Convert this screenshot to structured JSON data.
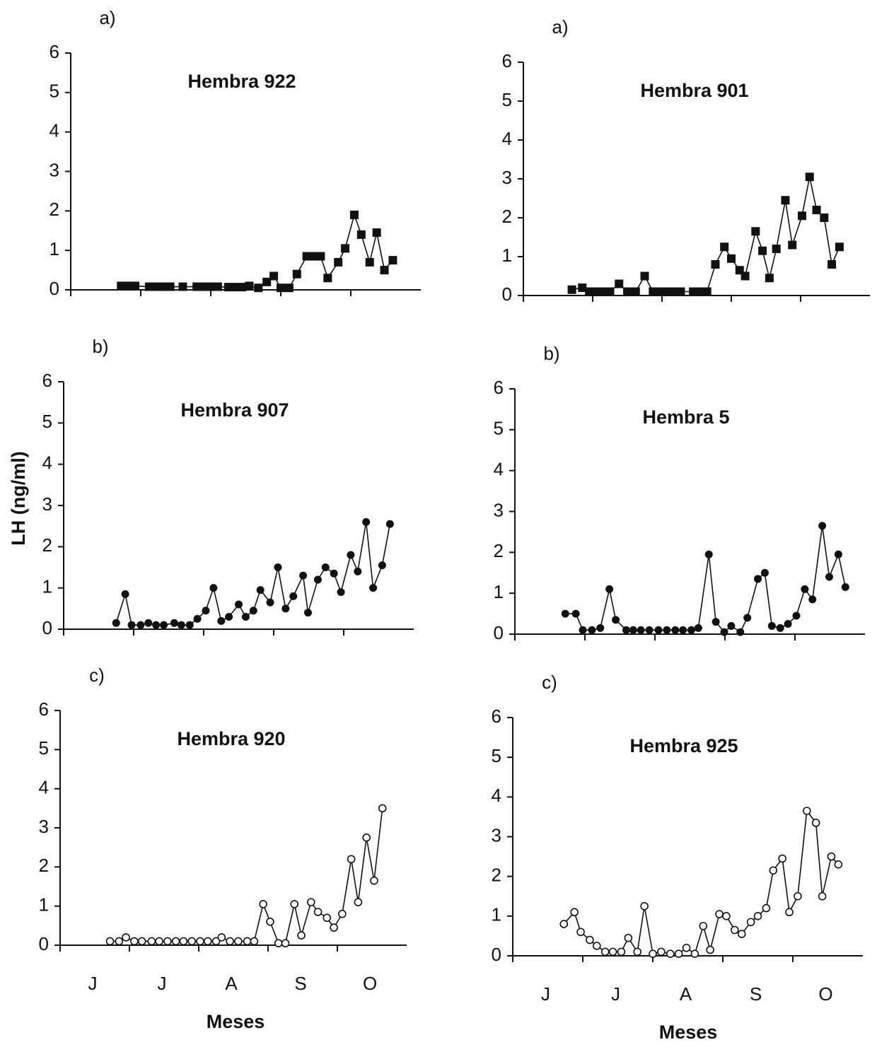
{
  "chart_data": [
    {
      "type": "line",
      "panel": "a)",
      "title": "Hembra 922",
      "marker": "square",
      "color": "#111111",
      "xlim": [
        0,
        5
      ],
      "xticks": [
        0,
        1,
        2,
        3,
        4
      ],
      "ylim": [
        0,
        6
      ],
      "yticks": [
        0,
        1,
        2,
        3,
        4,
        5,
        6
      ],
      "x": [
        0.72,
        0.82,
        0.92,
        1.12,
        1.22,
        1.32,
        1.42,
        1.6,
        1.8,
        1.9,
        2.0,
        2.1,
        2.25,
        2.35,
        2.45,
        2.55,
        2.68,
        2.8,
        2.9,
        3.0,
        3.12,
        3.23,
        3.37,
        3.47,
        3.57,
        3.67,
        3.82,
        3.92,
        4.05,
        4.15,
        4.27,
        4.37,
        4.48,
        4.6
      ],
      "values": [
        0.1,
        0.1,
        0.1,
        0.08,
        0.08,
        0.08,
        0.08,
        0.08,
        0.08,
        0.08,
        0.08,
        0.08,
        0.07,
        0.07,
        0.07,
        0.1,
        0.05,
        0.2,
        0.35,
        0.05,
        0.05,
        0.4,
        0.85,
        0.85,
        0.85,
        0.3,
        0.7,
        1.05,
        1.9,
        1.4,
        0.7,
        1.45,
        0.5,
        0.75
      ]
    },
    {
      "type": "line",
      "panel": "a)",
      "title": "Hembra 901",
      "marker": "square",
      "color": "#111111",
      "xlim": [
        0,
        5
      ],
      "xticks": [
        0,
        1,
        2,
        3,
        4
      ],
      "ylim": [
        0,
        6
      ],
      "yticks": [
        0,
        1,
        2,
        3,
        4,
        5,
        6
      ],
      "x": [
        0.7,
        0.85,
        0.95,
        1.05,
        1.15,
        1.25,
        1.38,
        1.5,
        1.62,
        1.75,
        1.87,
        1.97,
        2.07,
        2.17,
        2.27,
        2.45,
        2.55,
        2.65,
        2.77,
        2.9,
        3.0,
        3.12,
        3.2,
        3.35,
        3.45,
        3.55,
        3.65,
        3.78,
        3.88,
        4.02,
        4.13,
        4.23,
        4.34,
        4.45,
        4.56
      ],
      "values": [
        0.15,
        0.2,
        0.1,
        0.1,
        0.1,
        0.1,
        0.3,
        0.1,
        0.1,
        0.5,
        0.1,
        0.1,
        0.1,
        0.1,
        0.1,
        0.1,
        0.1,
        0.1,
        0.8,
        1.25,
        0.95,
        0.65,
        0.5,
        1.65,
        1.15,
        0.45,
        1.2,
        2.45,
        1.3,
        2.05,
        3.05,
        2.2,
        2.0,
        0.8,
        1.25
      ]
    },
    {
      "type": "line",
      "panel": "b)",
      "title": "Hembra 907",
      "marker": "circle",
      "color": "#111111",
      "ylabel": "LH (ng/ml)",
      "xlim": [
        0,
        5
      ],
      "xticks": [
        0,
        1,
        2,
        3,
        4
      ],
      "ylim": [
        0,
        6
      ],
      "yticks": [
        0,
        1,
        2,
        3,
        4,
        5,
        6
      ],
      "x": [
        0.75,
        0.88,
        0.97,
        1.1,
        1.21,
        1.32,
        1.43,
        1.58,
        1.68,
        1.8,
        1.91,
        2.03,
        2.14,
        2.25,
        2.36,
        2.5,
        2.6,
        2.71,
        2.81,
        2.95,
        3.06,
        3.17,
        3.28,
        3.42,
        3.49,
        3.63,
        3.74,
        3.86,
        3.96,
        4.1,
        4.2,
        4.32,
        4.42,
        4.55,
        4.66
      ],
      "values": [
        0.15,
        0.85,
        0.1,
        0.1,
        0.15,
        0.1,
        0.1,
        0.15,
        0.1,
        0.1,
        0.25,
        0.45,
        1.0,
        0.2,
        0.3,
        0.6,
        0.3,
        0.45,
        0.95,
        0.65,
        1.5,
        0.5,
        0.8,
        1.3,
        0.4,
        1.2,
        1.5,
        1.35,
        0.9,
        1.8,
        1.4,
        2.6,
        1.0,
        1.55,
        2.55
      ]
    },
    {
      "type": "line",
      "panel": "b)",
      "title": "Hembra 5",
      "marker": "circle",
      "color": "#111111",
      "xlim": [
        0,
        5
      ],
      "xticks": [
        0,
        1,
        2,
        3,
        4
      ],
      "ylim": [
        0,
        6
      ],
      "yticks": [
        0,
        1,
        2,
        3,
        4,
        5,
        6
      ],
      "x": [
        0.72,
        0.87,
        0.97,
        1.1,
        1.22,
        1.35,
        1.44,
        1.59,
        1.69,
        1.8,
        1.92,
        2.05,
        2.17,
        2.29,
        2.4,
        2.52,
        2.62,
        2.77,
        2.87,
        2.99,
        3.09,
        3.22,
        3.32,
        3.47,
        3.57,
        3.67,
        3.79,
        3.9,
        4.02,
        4.14,
        4.25,
        4.39,
        4.49,
        4.62,
        4.72
      ],
      "values": [
        0.5,
        0.5,
        0.1,
        0.1,
        0.15,
        1.1,
        0.35,
        0.1,
        0.1,
        0.1,
        0.1,
        0.1,
        0.1,
        0.1,
        0.1,
        0.1,
        0.15,
        1.95,
        0.3,
        0.05,
        0.2,
        0.05,
        0.4,
        1.35,
        1.5,
        0.2,
        0.15,
        0.25,
        0.45,
        1.1,
        0.85,
        2.65,
        1.4,
        1.95,
        1.15
      ]
    },
    {
      "type": "line",
      "panel": "c)",
      "title": "Hembra 920",
      "marker": "open-circle",
      "color": "#111111",
      "xlabel": "Meses",
      "month_labels": [
        "J",
        "J",
        "A",
        "S",
        "O"
      ],
      "xlim": [
        0,
        5
      ],
      "xticks": [
        0,
        1,
        2,
        3,
        4
      ],
      "ylim": [
        0,
        6
      ],
      "yticks": [
        0,
        1,
        2,
        3,
        4,
        5,
        6
      ],
      "x": [
        0.72,
        0.85,
        0.95,
        1.07,
        1.18,
        1.32,
        1.43,
        1.55,
        1.67,
        1.78,
        1.9,
        2.02,
        2.13,
        2.25,
        2.33,
        2.45,
        2.57,
        2.7,
        2.8,
        2.93,
        3.03,
        3.15,
        3.25,
        3.38,
        3.48,
        3.62,
        3.72,
        3.85,
        3.95,
        4.07,
        4.2,
        4.3,
        4.42,
        4.53,
        4.65
      ],
      "values": [
        0.1,
        0.1,
        0.2,
        0.1,
        0.1,
        0.1,
        0.1,
        0.1,
        0.1,
        0.1,
        0.1,
        0.1,
        0.1,
        0.1,
        0.2,
        0.1,
        0.1,
        0.1,
        0.1,
        1.05,
        0.6,
        0.05,
        0.05,
        1.05,
        0.25,
        1.1,
        0.85,
        0.7,
        0.45,
        0.8,
        2.2,
        1.1,
        2.75,
        1.65,
        3.5
      ]
    },
    {
      "type": "line",
      "panel": "c)",
      "title": "Hembra 925",
      "marker": "open-circle",
      "color": "#111111",
      "xlabel": "Meses",
      "month_labels": [
        "J",
        "J",
        "A",
        "S",
        "O"
      ],
      "xlim": [
        0,
        5
      ],
      "xticks": [
        0,
        1,
        2,
        3,
        4
      ],
      "ylim": [
        0,
        6
      ],
      "yticks": [
        0,
        1,
        2,
        3,
        4,
        5,
        6
      ],
      "x": [
        0.73,
        0.88,
        0.97,
        1.1,
        1.2,
        1.32,
        1.43,
        1.55,
        1.65,
        1.78,
        1.88,
        2.0,
        2.12,
        2.25,
        2.37,
        2.48,
        2.6,
        2.72,
        2.82,
        2.95,
        3.05,
        3.17,
        3.27,
        3.4,
        3.5,
        3.62,
        3.72,
        3.85,
        3.95,
        4.07,
        4.2,
        4.33,
        4.42,
        4.55,
        4.65
      ],
      "values": [
        0.8,
        1.1,
        0.6,
        0.4,
        0.25,
        0.1,
        0.1,
        0.1,
        0.45,
        0.1,
        1.25,
        0.05,
        0.1,
        0.05,
        0.05,
        0.2,
        0.05,
        0.75,
        0.15,
        1.05,
        1.0,
        0.65,
        0.55,
        0.85,
        1.0,
        1.2,
        2.15,
        2.45,
        1.1,
        1.5,
        3.65,
        3.35,
        1.5,
        2.5,
        2.3
      ]
    }
  ]
}
